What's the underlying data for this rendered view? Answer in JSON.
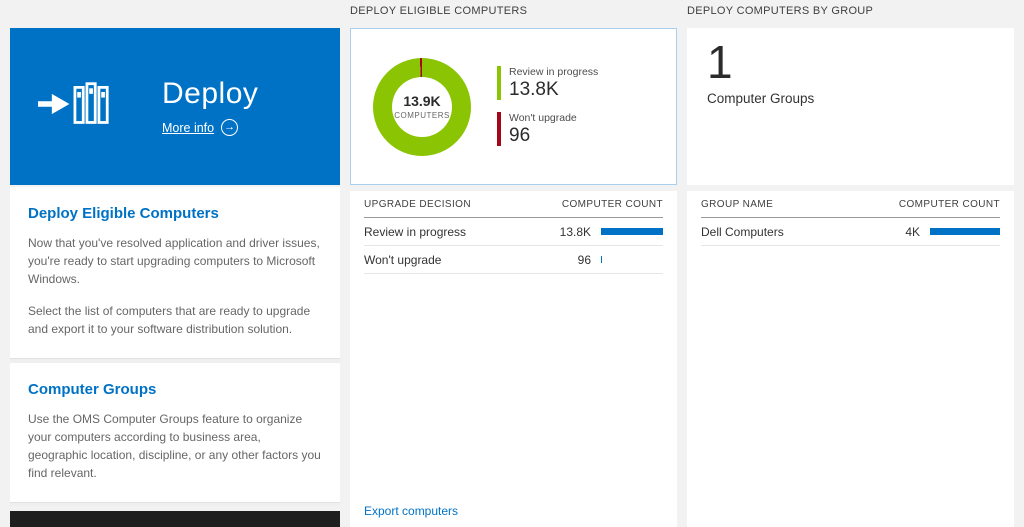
{
  "colors": {
    "accent": "#0072c6",
    "tile_blue": "#0072c6",
    "green": "#8bc402",
    "red": "#a6061a"
  },
  "left_panel": {
    "tile": {
      "title": "Deploy",
      "more_info_label": "More info"
    },
    "sections": [
      {
        "heading": "Deploy Eligible Computers",
        "paragraphs": [
          "Now that you've resolved application and driver issues, you're ready to start upgrading computers to Microsoft Windows.",
          "Select the list of computers that are ready to upgrade and export it to your software distribution solution."
        ]
      },
      {
        "heading": "Computer Groups",
        "paragraphs": [
          "Use the OMS Computer Groups feature to organize your computers according to business area, geographic location, discipline, or any other factors you find relevant."
        ]
      }
    ]
  },
  "middle_panel": {
    "header": "DEPLOY ELIGIBLE COMPUTERS",
    "donut": {
      "center_value": "13.9K",
      "center_label": "COMPUTERS",
      "legend": [
        {
          "label": "Review in progress",
          "value": "13.8K",
          "color": "#8bc402"
        },
        {
          "label": "Won't upgrade",
          "value": "96",
          "color": "#a6061a"
        }
      ]
    },
    "table": {
      "columns": [
        "UPGRADE DECISION",
        "COMPUTER COUNT"
      ],
      "rows": [
        {
          "label": "Review in progress",
          "value": "13.8K",
          "bar_pct": 100
        },
        {
          "label": "Won't upgrade",
          "value": "96",
          "bar_pct": 2
        }
      ]
    },
    "footer_link": "Export computers"
  },
  "right_panel": {
    "header": "DEPLOY COMPUTERS BY GROUP",
    "tile": {
      "value": "1",
      "label": "Computer Groups"
    },
    "table": {
      "columns": [
        "GROUP NAME",
        "COMPUTER COUNT"
      ],
      "rows": [
        {
          "label": "Dell Computers",
          "value": "4K",
          "bar_pct": 100
        }
      ]
    }
  },
  "chart_data": [
    {
      "type": "pie",
      "title": "DEPLOY ELIGIBLE COMPUTERS",
      "categories": [
        "Review in progress",
        "Won't upgrade"
      ],
      "values": [
        13800,
        96
      ],
      "colors": [
        "#8bc402",
        "#a6061a"
      ],
      "center_value": "13.9K",
      "center_label": "COMPUTERS",
      "legend_position": "right",
      "slices": [
        {
          "color": "#8bc402",
          "pct": 99.31
        },
        {
          "color": "#a6061a",
          "pct": 0.69
        }
      ]
    },
    {
      "type": "table",
      "title": "UPGRADE DECISION vs COMPUTER COUNT",
      "categories": [
        "Review in progress",
        "Won't upgrade"
      ],
      "values": [
        13800,
        96
      ]
    },
    {
      "type": "table",
      "title": "GROUP NAME vs COMPUTER COUNT",
      "categories": [
        "Dell Computers"
      ],
      "values": [
        4000
      ]
    }
  ]
}
